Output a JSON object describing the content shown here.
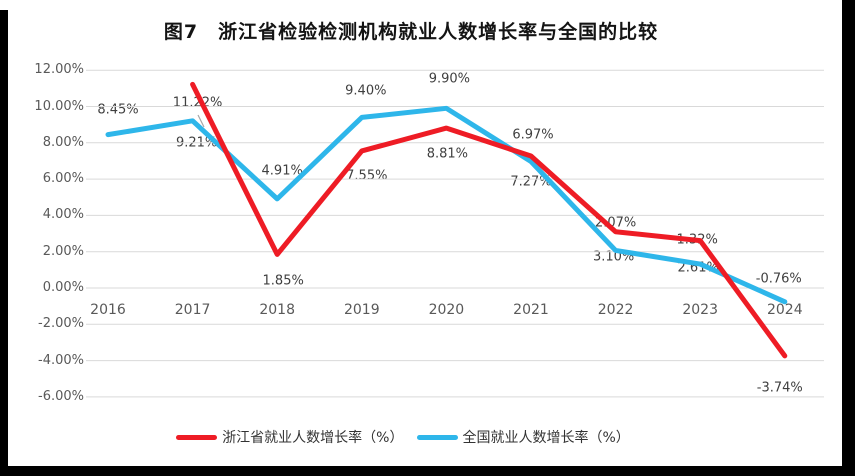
{
  "page": {
    "background": "#FFFFFF",
    "border_color": "#000000"
  },
  "chart_data": {
    "type": "line",
    "title": "图7　浙江省检验检测机构就业人数增长率与全国的比较",
    "categories": [
      "2016",
      "2017",
      "2018",
      "2019",
      "2020",
      "2021",
      "2022",
      "2023",
      "2024"
    ],
    "series": [
      {
        "name": "浙江省就业人数增长率（%）",
        "color": "#EE1C25",
        "values": [
          null,
          11.22,
          1.85,
          7.55,
          8.81,
          7.27,
          3.1,
          2.61,
          -3.74
        ]
      },
      {
        "name": "全国就业人数增长率（%）",
        "color": "#2EB6EA",
        "values": [
          8.45,
          9.21,
          4.91,
          9.4,
          9.9,
          6.97,
          2.07,
          1.32,
          -0.76
        ]
      }
    ],
    "ylim": [
      -6,
      12
    ],
    "ytick_step": 2,
    "ytick_labels": [
      "12.00%",
      "10.00%",
      "8.00%",
      "6.00%",
      "4.00%",
      "2.00%",
      "0.00%",
      "-2.00%",
      "-4.00%",
      "-6.00%"
    ],
    "grid": true,
    "legend_position": "bottom",
    "gridline_color": "#D9D9D9",
    "axis_label_color": "#595959",
    "data_label_color": "#3F3F3F",
    "leader_line_color": "#A6A6A6"
  }
}
